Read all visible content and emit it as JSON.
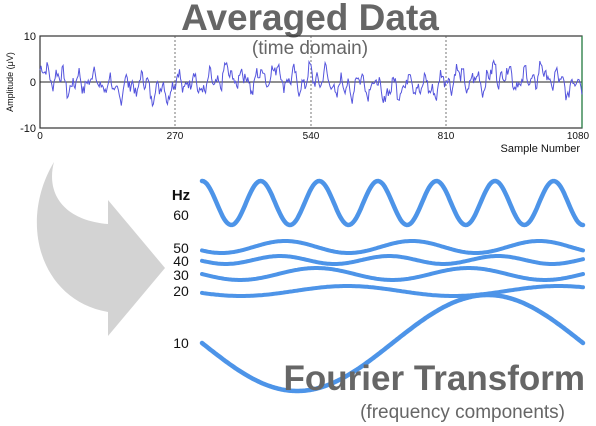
{
  "header": {
    "title": "Averaged Data",
    "subtitle": "(time domain)"
  },
  "time_plot": {
    "ylabel": "Amplitude (μV)",
    "xlabel": "Sample Number",
    "ytick_labels": [
      "10",
      "0",
      "-10"
    ],
    "xtick_labels": [
      "0",
      "270",
      "540",
      "810",
      "1080"
    ],
    "color": "#5555dd"
  },
  "freq_panel": {
    "unit_label": "Hz",
    "title": "Fourier Transform",
    "subtitle": "(frequency components)",
    "wave_color": "#4d94e8",
    "arrow_color": "#d3d3d3",
    "waves": [
      {
        "label": "60"
      },
      {
        "label": "50"
      },
      {
        "label": "40"
      },
      {
        "label": "30"
      },
      {
        "label": "20"
      },
      {
        "label": "10"
      }
    ]
  },
  "chart_data": {
    "type": "line",
    "title": "Averaged Data",
    "xlabel": "Sample Number",
    "ylabel": "Amplitude (μV)",
    "xlim": [
      0,
      1080
    ],
    "ylim": [
      -10,
      10
    ],
    "xticks": [
      0,
      270,
      540,
      810,
      1080
    ],
    "yticks": [
      10,
      0,
      -10
    ],
    "grid": false
  }
}
